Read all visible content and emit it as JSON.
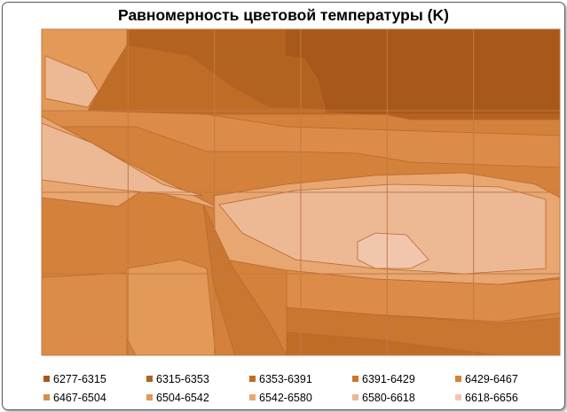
{
  "chart_data": {
    "type": "contour",
    "title": "Равномерность цветовой температуры (K)",
    "grid": true,
    "legend_position": "bottom",
    "legend": [
      {
        "label": "6277-6315",
        "color": "#a8581a"
      },
      {
        "label": "6315-6353",
        "color": "#b4621f"
      },
      {
        "label": "6353-6391",
        "color": "#bf6c27"
      },
      {
        "label": "6391-6429",
        "color": "#c97631"
      },
      {
        "label": "6429-6467",
        "color": "#d3813b"
      },
      {
        "label": "6467-6504",
        "color": "#dc8c48"
      },
      {
        "label": "6504-6542",
        "color": "#e39957"
      },
      {
        "label": "6542-6580",
        "color": "#e8a770"
      },
      {
        "label": "6580-6618",
        "color": "#edb894"
      },
      {
        "label": "6618-6656",
        "color": "#f1c6ad"
      }
    ],
    "series": [
      {
        "level": 1,
        "range": [
          6277,
          6315
        ]
      },
      {
        "level": 2,
        "range": [
          6315,
          6353
        ]
      },
      {
        "level": 3,
        "range": [
          6353,
          6391
        ]
      },
      {
        "level": 4,
        "range": [
          6391,
          6429
        ]
      },
      {
        "level": 5,
        "range": [
          6429,
          6467
        ]
      },
      {
        "level": 6,
        "range": [
          6467,
          6504
        ]
      },
      {
        "level": 7,
        "range": [
          6504,
          6542
        ]
      },
      {
        "level": 8,
        "range": [
          6542,
          6580
        ]
      },
      {
        "level": 9,
        "range": [
          6580,
          6618
        ]
      },
      {
        "level": 10,
        "range": [
          6618,
          6656
        ]
      }
    ]
  }
}
